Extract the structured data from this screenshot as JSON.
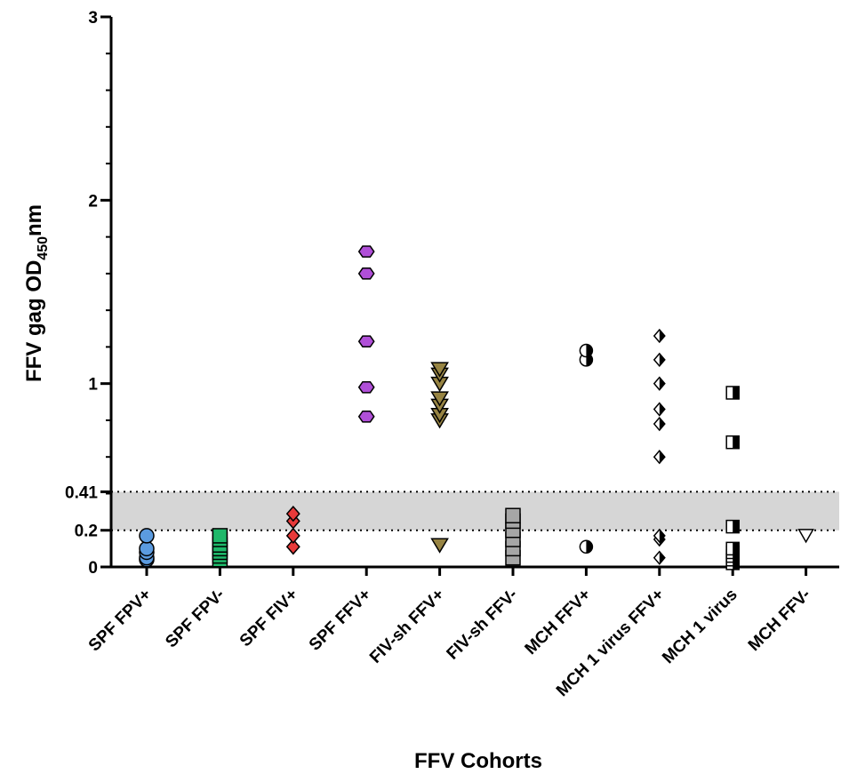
{
  "chart_data": {
    "type": "scatter",
    "xlabel": "FFV Cohorts",
    "ylabel_main": "FFV gag OD",
    "ylabel_sub": "450",
    "ylabel_unit": "nm",
    "ylim": [
      0,
      3
    ],
    "y_ticks": [
      {
        "value": 0,
        "label": "0"
      },
      {
        "value": 0.2,
        "label": "0.2"
      },
      {
        "value": 0.41,
        "label": "0.41"
      },
      {
        "value": 1,
        "label": "1"
      },
      {
        "value": 2,
        "label": "2"
      },
      {
        "value": 3,
        "label": "3"
      }
    ],
    "threshold_band": [
      0.2,
      0.41
    ],
    "grid": false,
    "categories": [
      "SPF FPV+",
      "SPF FPV-",
      "SPF FIV+",
      "SPF FFV+",
      "FIV-sh FFV+",
      "FIV-sh FFV-",
      "MCH FFV+",
      "MCH 1 virus FFV+",
      "MCH 1 virus",
      "MCH FFV-"
    ],
    "series": [
      {
        "category": "SPF FPV+",
        "marker": "circle",
        "color": "#5b9be0",
        "values": [
          0.04,
          0.05,
          0.08,
          0.1,
          0.17
        ]
      },
      {
        "category": "SPF FPV-",
        "marker": "square",
        "color": "#1fb86a",
        "values": [
          0.04,
          0.06,
          0.08,
          0.1,
          0.12,
          0.15,
          0.17
        ]
      },
      {
        "category": "SPF FIV+",
        "marker": "diamond",
        "color": "#e83a3a",
        "values": [
          0.11,
          0.17,
          0.25,
          0.29
        ]
      },
      {
        "category": "SPF FFV+",
        "marker": "hexagon",
        "color": "#b04fd8",
        "values": [
          0.82,
          0.98,
          1.23,
          1.6,
          1.72
        ]
      },
      {
        "category": "FIV-sh FFV+",
        "marker": "triangle-down",
        "color": "#978443",
        "values": [
          0.12,
          0.8,
          0.83,
          0.88,
          0.92,
          1.0,
          1.05,
          1.08
        ]
      },
      {
        "category": "FIV-sh FFV-",
        "marker": "square",
        "color": "#a6a6a6",
        "values": [
          0.05,
          0.1,
          0.15,
          0.2,
          0.25,
          0.28
        ]
      },
      {
        "category": "MCH FFV+",
        "marker": "half-circle",
        "color": "#000000",
        "values": [
          0.11,
          1.13,
          1.18
        ]
      },
      {
        "category": "MCH 1 virus FFV+",
        "marker": "half-diamond",
        "color": "#000000",
        "values": [
          0.05,
          0.15,
          0.17,
          0.6,
          0.78,
          0.86,
          1.0,
          1.13,
          1.26
        ]
      },
      {
        "category": "MCH 1 virus",
        "marker": "half-square",
        "color": "#000000",
        "values": [
          0.02,
          0.04,
          0.06,
          0.08,
          0.1,
          0.22,
          0.68,
          0.95
        ]
      },
      {
        "category": "MCH FFV-",
        "marker": "triangle-down-open",
        "color": "#000000",
        "values": [
          0.17
        ]
      }
    ]
  }
}
